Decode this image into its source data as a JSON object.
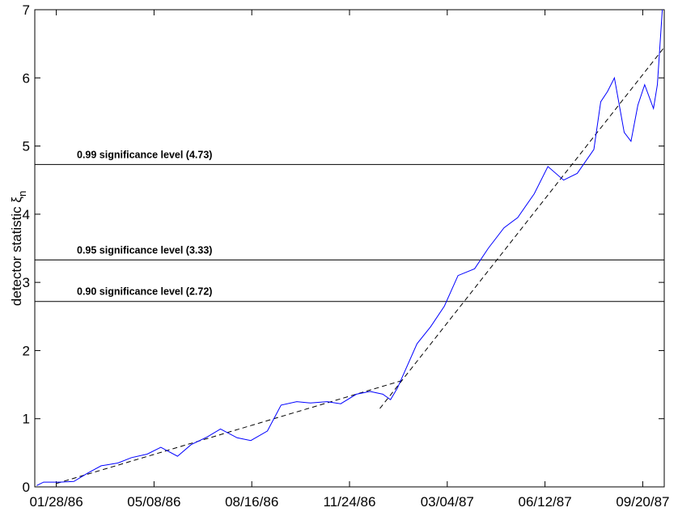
{
  "chart_data": {
    "type": "line",
    "ylabel": {
      "text": "detector statistic ξ",
      "subscript": "n"
    },
    "xlim": [
      "01/06/86",
      "10/12/87"
    ],
    "xticks": [
      "01/28/86",
      "05/08/86",
      "08/16/86",
      "11/24/86",
      "03/04/87",
      "06/12/87",
      "09/20/87"
    ],
    "ylim": [
      0,
      7
    ],
    "yticks": [
      0,
      1,
      2,
      3,
      4,
      5,
      6,
      7
    ],
    "x": [
      "01/08/86",
      "01/15/86",
      "02/01/86",
      "02/15/86",
      "03/01/86",
      "03/15/86",
      "04/01/86",
      "04/15/86",
      "05/01/86",
      "05/15/86",
      "06/01/86",
      "06/15/86",
      "07/01/86",
      "07/15/86",
      "08/01/86",
      "08/15/86",
      "09/01/86",
      "09/15/86",
      "10/01/86",
      "10/15/86",
      "11/01/86",
      "11/15/86",
      "12/01/86",
      "12/15/86",
      "12/28/86",
      "01/05/87",
      "01/12/87",
      "02/01/87",
      "02/15/87",
      "03/01/87",
      "03/15/87",
      "04/01/87",
      "04/15/87",
      "05/01/87",
      "05/15/87",
      "06/01/87",
      "06/15/87",
      "07/01/87",
      "07/15/87",
      "08/01/87",
      "08/08/87",
      "08/15/87",
      "08/22/87",
      "09/01/87",
      "09/08/87",
      "09/15/87",
      "09/22/87",
      "10/01/87",
      "10/05/87",
      "10/10/87"
    ],
    "series": [
      {
        "color": "#0000ff",
        "values": [
          0.02,
          0.07,
          0.07,
          0.08,
          0.2,
          0.31,
          0.35,
          0.43,
          0.48,
          0.58,
          0.45,
          0.62,
          0.73,
          0.85,
          0.72,
          0.68,
          0.82,
          1.2,
          1.25,
          1.23,
          1.25,
          1.22,
          1.36,
          1.4,
          1.36,
          1.28,
          1.45,
          2.1,
          2.35,
          2.65,
          3.1,
          3.2,
          3.5,
          3.8,
          3.95,
          4.3,
          4.7,
          4.5,
          4.6,
          4.95,
          5.65,
          5.8,
          6.0,
          5.2,
          5.07,
          5.6,
          5.9,
          5.55,
          5.9,
          7.0
        ]
      }
    ],
    "fits": [
      {
        "color": "#000000",
        "x": [
          "01/28/86",
          "01/19/87"
        ],
        "values": [
          0.05,
          1.57
        ]
      },
      {
        "color": "#000000",
        "x": [
          "12/25/86",
          "10/11/87"
        ],
        "values": [
          1.15,
          6.43
        ]
      }
    ],
    "hlines": [
      {
        "value": 4.73,
        "label": "0.99 significance level (4.73)"
      },
      {
        "value": 3.33,
        "label": "0.95 significance level (3.33)"
      },
      {
        "value": 2.72,
        "label": "0.90 significance level (2.72)"
      }
    ]
  }
}
